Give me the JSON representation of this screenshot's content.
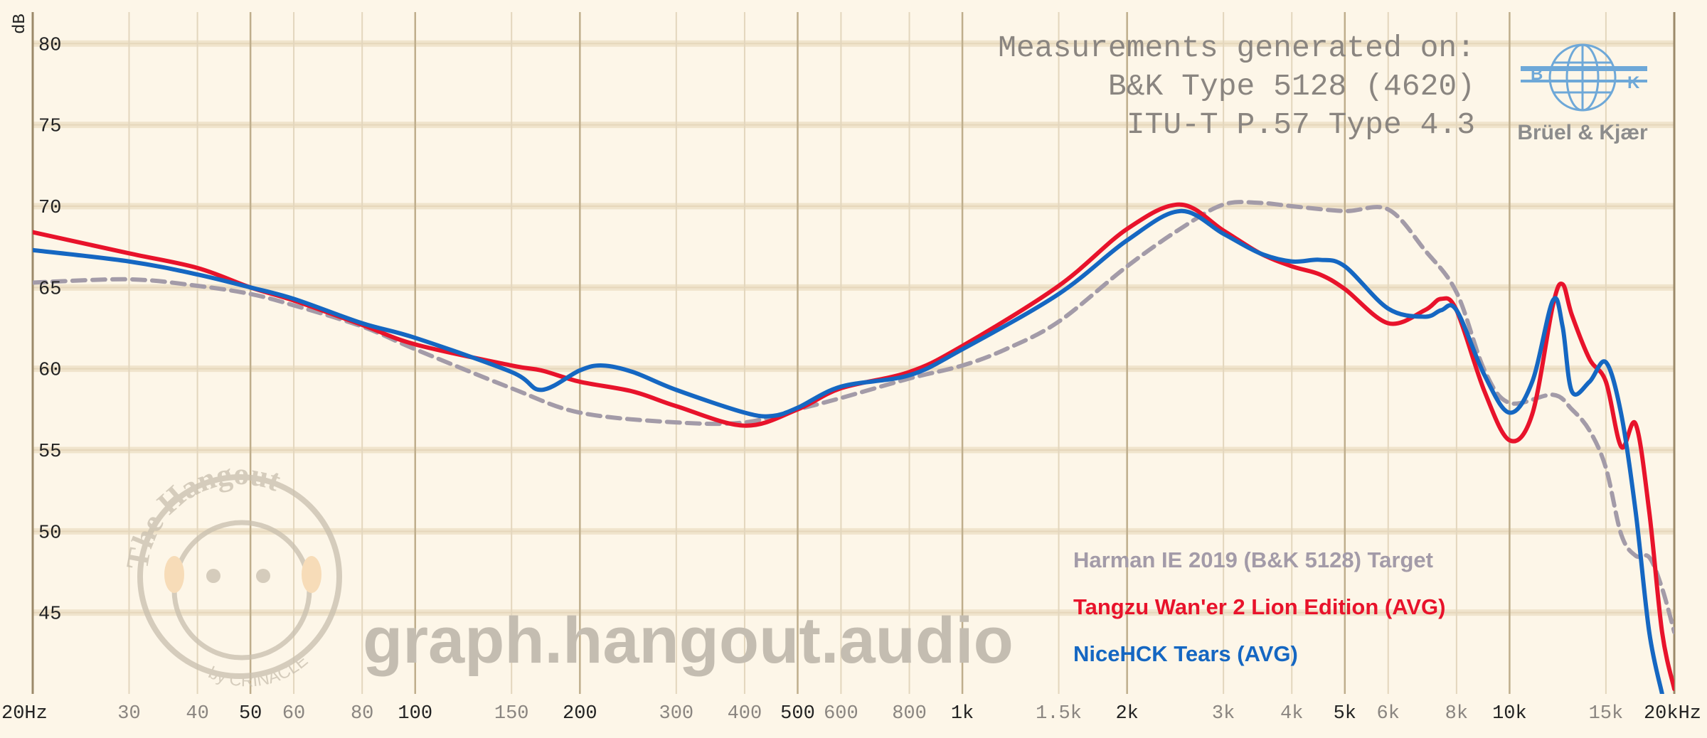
{
  "chart_data": {
    "type": "line",
    "title_lines": [
      "Measurements generated on:",
      "B&K Type 5128 (4620)",
      "ITU-T P.57 Type 4.3"
    ],
    "y_label": "dB",
    "watermark": "graph.hangout.audio",
    "bk_logo": {
      "letters": [
        "B",
        "K"
      ],
      "name": "Brüel & Kjær"
    },
    "hangout_logo": {
      "name": "The Hangout",
      "by": "by CRINACLE"
    },
    "x_log": true,
    "grid": true,
    "xlim": [
      20,
      20000
    ],
    "ylim": [
      40,
      81.5
    ],
    "xticks": [
      {
        "value": 20,
        "label": "20Hz"
      },
      30,
      40,
      50,
      60,
      80,
      100,
      150,
      200,
      300,
      400,
      500,
      600,
      800,
      {
        "value": 1000,
        "label": "1k"
      },
      {
        "value": 1500,
        "label": "1.5k"
      },
      {
        "value": 2000,
        "label": "2k"
      },
      {
        "value": 3000,
        "label": "3k"
      },
      {
        "value": 4000,
        "label": "4k"
      },
      {
        "value": 5000,
        "label": "5k"
      },
      {
        "value": 6000,
        "label": "6k"
      },
      {
        "value": 8000,
        "label": "8k"
      },
      {
        "value": 10000,
        "label": "10k"
      },
      {
        "value": 15000,
        "label": "15k"
      },
      {
        "value": 20000,
        "label": "20kHz"
      }
    ],
    "yticks": [
      45,
      50,
      55,
      60,
      65,
      70,
      75,
      80
    ],
    "series": [
      {
        "name": "Harman IE 2019 (B&K 5128) Target",
        "color": "#a39ba8",
        "style": "dashed",
        "x": [
          20,
          30,
          40,
          50,
          60,
          80,
          100,
          150,
          200,
          300,
          400,
          500,
          600,
          800,
          1000,
          1200,
          1500,
          2000,
          2500,
          3000,
          3500,
          4000,
          5000,
          6000,
          7000,
          8000,
          9000,
          10000,
          12000,
          13000,
          14000,
          15000,
          16000,
          17000,
          18000,
          19000,
          20000
        ],
        "values": [
          65.3,
          65.5,
          65.1,
          64.6,
          63.9,
          62.6,
          61.2,
          58.8,
          57.3,
          56.7,
          56.7,
          57.5,
          58.2,
          59.4,
          60.2,
          61.2,
          62.9,
          66.3,
          68.6,
          70.1,
          70.2,
          70.0,
          69.7,
          69.8,
          67.3,
          64.7,
          59.9,
          57.9,
          58.4,
          57.5,
          56.2,
          53.9,
          49.8,
          48.5,
          48.4,
          46.5,
          43.8
        ]
      },
      {
        "name": "Tangzu Wan'er 2 Lion Edition (AVG)",
        "color": "#e8132b",
        "style": "solid",
        "x": [
          20,
          30,
          40,
          50,
          60,
          80,
          100,
          150,
          170,
          200,
          250,
          300,
          400,
          500,
          600,
          800,
          1000,
          1500,
          2000,
          2500,
          3000,
          3500,
          4000,
          4500,
          5000,
          6000,
          7000,
          7500,
          8000,
          9000,
          10000,
          11000,
          12000,
          12500,
          13000,
          14000,
          15000,
          16000,
          17000,
          18000,
          19000,
          20000
        ],
        "values": [
          68.4,
          67.1,
          66.2,
          65.0,
          64.2,
          62.7,
          61.5,
          60.2,
          59.9,
          59.2,
          58.6,
          57.7,
          56.5,
          57.5,
          58.8,
          59.8,
          61.4,
          65.1,
          68.6,
          70.1,
          68.5,
          67.1,
          66.3,
          65.8,
          64.9,
          62.8,
          63.6,
          64.3,
          63.6,
          58.6,
          55.6,
          57.2,
          63.9,
          65.2,
          63.3,
          60.6,
          59.2,
          55.2,
          56.6,
          51.2,
          43.8,
          40.3
        ]
      },
      {
        "name": "NiceHCK Tears (AVG)",
        "color": "#1567c2",
        "style": "solid",
        "x": [
          20,
          30,
          40,
          50,
          60,
          80,
          100,
          150,
          170,
          200,
          220,
          250,
          300,
          400,
          450,
          500,
          600,
          800,
          1000,
          1500,
          2000,
          2500,
          3000,
          3500,
          4000,
          4500,
          5000,
          6000,
          7000,
          7500,
          8000,
          9000,
          10000,
          11000,
          12000,
          12500,
          13000,
          14000,
          15000,
          16000,
          17000,
          18000,
          19000
        ],
        "values": [
          67.3,
          66.6,
          65.8,
          65.0,
          64.3,
          62.8,
          61.9,
          59.8,
          58.7,
          59.9,
          60.2,
          59.8,
          58.7,
          57.3,
          57.1,
          57.6,
          58.9,
          59.6,
          61.2,
          64.6,
          67.9,
          69.7,
          68.3,
          67.1,
          66.6,
          66.7,
          66.3,
          63.7,
          63.2,
          63.6,
          63.6,
          59.6,
          57.3,
          59.2,
          64.2,
          62.6,
          58.6,
          59.2,
          60.4,
          57.2,
          51.2,
          43.8,
          40.0
        ]
      }
    ]
  }
}
